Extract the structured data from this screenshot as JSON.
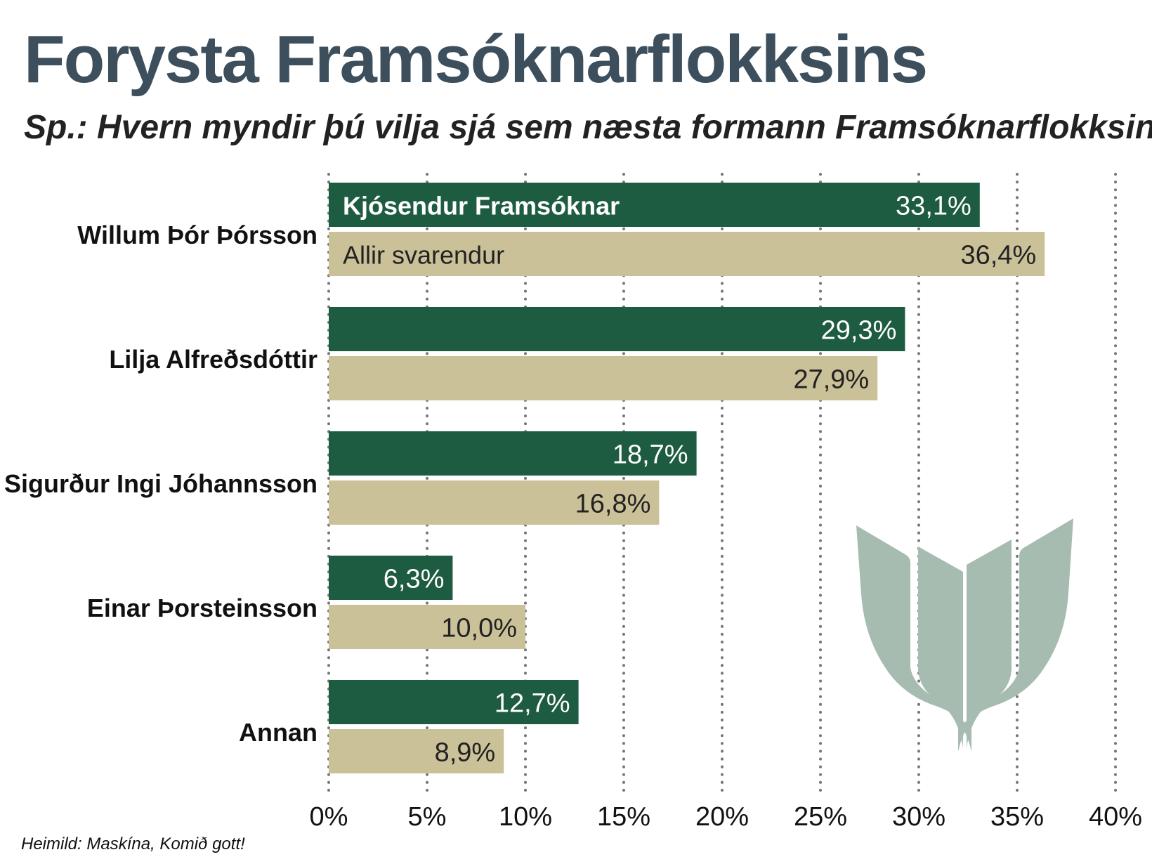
{
  "chart_data": {
    "type": "bar",
    "orientation": "horizontal",
    "title": "Forysta Framsóknarflokksins",
    "subtitle": "Sp.: Hvern myndir þú vilja sjá sem næsta formann Framsóknarflokksins?",
    "categories": [
      "Willum Þór Þórsson",
      "Lilja Alfreðsdóttir",
      "Sigurður Ingi Jóhannsson",
      "Einar Þorsteinsson",
      "Annan"
    ],
    "series": [
      {
        "name": "Kjósendur Framsóknar",
        "color": "#1e5c42",
        "values": [
          33.1,
          29.3,
          18.7,
          6.3,
          12.7
        ],
        "value_labels": [
          "33,1%",
          "29,3%",
          "18,7%",
          "6,3%",
          "12,7%"
        ]
      },
      {
        "name": "Allir svarendur",
        "color": "#cbc199",
        "values": [
          36.4,
          27.9,
          16.8,
          10.0,
          8.9
        ],
        "value_labels": [
          "36,4%",
          "27,9%",
          "16,8%",
          "10,0%",
          "8,9%"
        ]
      }
    ],
    "xlim": [
      0,
      40
    ],
    "xticks": [
      0,
      5,
      10,
      15,
      20,
      25,
      30,
      35,
      40
    ],
    "xtick_labels": [
      "0%",
      "5%",
      "10%",
      "15%",
      "20%",
      "25%",
      "30%",
      "35%",
      "40%"
    ],
    "grid": "dotted vertical",
    "legend": "inside first category bars"
  },
  "source": "Heimild: Maskína, Komið gott!",
  "logo": {
    "icon": "framsokn-logo-icon",
    "color": "#a6bcb0"
  }
}
